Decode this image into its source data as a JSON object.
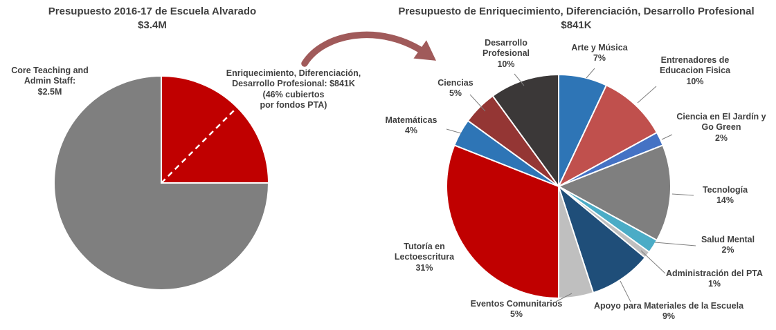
{
  "left_chart": {
    "title": "Presupuesto 2016-17 de Escuela Alvarado",
    "subtitle": "$3.4M",
    "gray_label_lines": [
      "Core Teaching and",
      "Admin Staff:",
      "$2.5M"
    ],
    "red_label_lines": [
      "Enriquecimiento, Diferenciación,",
      "Desarrollo Profesional: $841K",
      "(46% cubiertos",
      "por fondos PTA)"
    ]
  },
  "right_chart": {
    "title": "Presupuesto de Enriquecimiento, Diferenciación, Desarrollo Profesional",
    "subtitle": "$841K"
  },
  "arrow": {
    "color": "#A05A5A"
  },
  "colors": {
    "accent_red": "#C00000",
    "neutral_gray": "#7F7F7F",
    "text": "#404040"
  },
  "chart_data": [
    {
      "type": "pie",
      "title": "Presupuesto 2016-17 de Escuela Alvarado",
      "subtitle": "$3.4M",
      "start_angle_deg": 90,
      "slices": [
        {
          "id": "core-teaching-admin-staff",
          "label": "Core Teaching and Admin Staff: $2.5M",
          "value": 75,
          "color": "#7F7F7F"
        },
        {
          "id": "enriquecimiento-diferenciacion-desarrollo",
          "label": "Enriquecimiento, Diferenciación, Desarrollo Profesional: $841K (46% cubiertos por fondos PTA)",
          "value": 25,
          "color": "#C00000"
        }
      ],
      "annotation": "white dashed radial line marks the 46% of the red slice covered by PTA funds"
    },
    {
      "type": "pie",
      "title": "Presupuesto de Enriquecimiento, Diferenciación, Desarrollo Profesional",
      "subtitle": "$841K",
      "start_angle_deg": 0,
      "slices": [
        {
          "id": "arte-y-musica",
          "label": "Arte y Música",
          "pct": "7%",
          "value": 7,
          "color": "#2E75B6"
        },
        {
          "id": "entrenadores-educacion-fisica",
          "label": "Entrenadores de Educacion Fisica",
          "pct": "10%",
          "value": 10,
          "color": "#C0504D"
        },
        {
          "id": "ciencia-jardin-go-green",
          "label": "Ciencia en El Jardín y Go Green",
          "pct": "2%",
          "value": 2,
          "color": "#4472C4"
        },
        {
          "id": "tecnologia",
          "label": "Tecnología",
          "pct": "14%",
          "value": 14,
          "color": "#7F7F7F"
        },
        {
          "id": "salud-mental",
          "label": "Salud Mental",
          "pct": "2%",
          "value": 2,
          "color": "#4BACC6"
        },
        {
          "id": "administracion-pta",
          "label": "Administración del PTA",
          "pct": "1%",
          "value": 1,
          "color": "#BFBFBF"
        },
        {
          "id": "apoyo-materiales-escuela",
          "label": "Apoyo para Materiales de la Escuela",
          "pct": "9%",
          "value": 9,
          "color": "#1F4E79"
        },
        {
          "id": "eventos-comunitarios",
          "label": "Eventos Comunitarios",
          "pct": "5%",
          "value": 5,
          "color": "#BFBFBF"
        },
        {
          "id": "tutoria-lectoescritura",
          "label": "Tutoría en Lectoescritura",
          "pct": "31%",
          "value": 31,
          "color": "#C00000"
        },
        {
          "id": "matematicas",
          "label": "Matemáticas",
          "pct": "4%",
          "value": 4,
          "color": "#2E75B6"
        },
        {
          "id": "ciencias",
          "label": "Ciencias",
          "pct": "5%",
          "value": 5,
          "color": "#943634"
        },
        {
          "id": "desarrollo-profesional",
          "label": "Desarrollo Profesional",
          "pct": "10%",
          "value": 10,
          "color": "#3B3838"
        }
      ]
    }
  ]
}
